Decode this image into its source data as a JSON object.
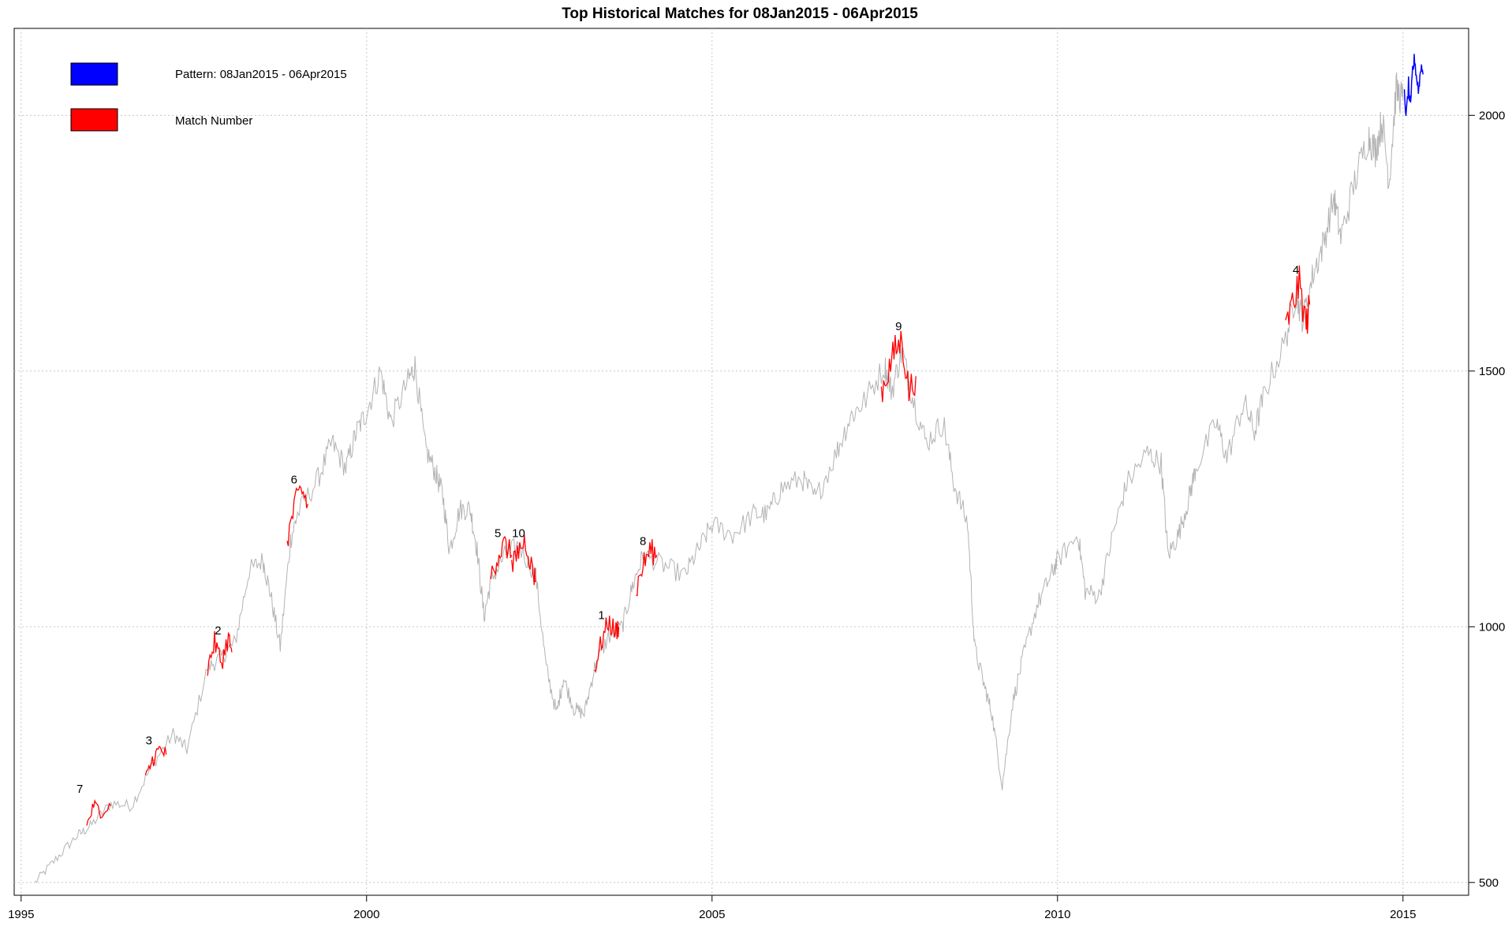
{
  "chart_data": {
    "type": "line",
    "title": "Top Historical Matches for  08Jan2015 - 06Apr2015",
    "xlabel": "",
    "ylabel": "",
    "xlim": [
      1994.9,
      2015.95
    ],
    "ylim": [
      475,
      2170
    ],
    "x_ticks": [
      1995,
      2000,
      2005,
      2010,
      2015
    ],
    "y_ticks": [
      500,
      1000,
      1500,
      2000
    ],
    "y_axis_side": "right",
    "grid": true,
    "legend": {
      "placement": "top-left",
      "items": [
        {
          "label": "Pattern:   08Jan2015 - 06Apr2015",
          "color": "#0000ff"
        },
        {
          "label": "Match Number",
          "color": "#ff0000"
        }
      ]
    },
    "series": [
      {
        "role": "history",
        "color": "#b3b3b3",
        "points": [
          [
            1995.2,
            500
          ],
          [
            1995.5,
            545
          ],
          [
            1995.8,
            590
          ],
          [
            1996.0,
            610
          ],
          [
            1996.3,
            655
          ],
          [
            1996.6,
            650
          ],
          [
            1996.9,
            730
          ],
          [
            1997.2,
            790
          ],
          [
            1997.4,
            760
          ],
          [
            1997.7,
            920
          ],
          [
            1997.9,
            940
          ],
          [
            1998.1,
            970
          ],
          [
            1998.3,
            1110
          ],
          [
            1998.5,
            1130
          ],
          [
            1998.6,
            1070
          ],
          [
            1998.75,
            960
          ],
          [
            1998.9,
            1170
          ],
          [
            1999.0,
            1220
          ],
          [
            1999.3,
            1290
          ],
          [
            1999.5,
            1360
          ],
          [
            1999.7,
            1310
          ],
          [
            1999.85,
            1380
          ],
          [
            2000.0,
            1420
          ],
          [
            2000.2,
            1500
          ],
          [
            2000.35,
            1400
          ],
          [
            2000.6,
            1480
          ],
          [
            2000.7,
            1510
          ],
          [
            2000.85,
            1350
          ],
          [
            2001.0,
            1300
          ],
          [
            2001.1,
            1260
          ],
          [
            2001.2,
            1150
          ],
          [
            2001.35,
            1230
          ],
          [
            2001.5,
            1230
          ],
          [
            2001.6,
            1150
          ],
          [
            2001.7,
            1020
          ],
          [
            2001.8,
            1090
          ],
          [
            2002.0,
            1140
          ],
          [
            2002.2,
            1160
          ],
          [
            2002.45,
            1100
          ],
          [
            2002.6,
            920
          ],
          [
            2002.75,
            830
          ],
          [
            2002.85,
            900
          ],
          [
            2003.0,
            840
          ],
          [
            2003.15,
            830
          ],
          [
            2003.3,
            920
          ],
          [
            2003.5,
            980
          ],
          [
            2003.7,
            1000
          ],
          [
            2003.85,
            1080
          ],
          [
            2004.0,
            1140
          ],
          [
            2004.3,
            1120
          ],
          [
            2004.6,
            1100
          ],
          [
            2004.8,
            1150
          ],
          [
            2005.0,
            1200
          ],
          [
            2005.3,
            1180
          ],
          [
            2005.6,
            1220
          ],
          [
            2005.8,
            1220
          ],
          [
            2006.0,
            1270
          ],
          [
            2006.3,
            1290
          ],
          [
            2006.5,
            1250
          ],
          [
            2006.8,
            1340
          ],
          [
            2007.0,
            1410
          ],
          [
            2007.2,
            1440
          ],
          [
            2007.5,
            1510
          ],
          [
            2007.6,
            1460
          ],
          [
            2007.75,
            1540
          ],
          [
            2007.9,
            1450
          ],
          [
            2008.1,
            1360
          ],
          [
            2008.35,
            1400
          ],
          [
            2008.5,
            1280
          ],
          [
            2008.7,
            1200
          ],
          [
            2008.8,
            960
          ],
          [
            2008.95,
            880
          ],
          [
            2009.05,
            830
          ],
          [
            2009.2,
            690
          ],
          [
            2009.35,
            850
          ],
          [
            2009.5,
            940
          ],
          [
            2009.7,
            1040
          ],
          [
            2009.9,
            1100
          ],
          [
            2010.0,
            1130
          ],
          [
            2010.3,
            1180
          ],
          [
            2010.4,
            1070
          ],
          [
            2010.6,
            1060
          ],
          [
            2010.8,
            1180
          ],
          [
            2011.0,
            1280
          ],
          [
            2011.3,
            1340
          ],
          [
            2011.5,
            1320
          ],
          [
            2011.6,
            1140
          ],
          [
            2011.75,
            1180
          ],
          [
            2011.9,
            1250
          ],
          [
            2012.0,
            1310
          ],
          [
            2012.3,
            1400
          ],
          [
            2012.45,
            1330
          ],
          [
            2012.7,
            1440
          ],
          [
            2012.85,
            1380
          ],
          [
            2013.0,
            1460
          ],
          [
            2013.3,
            1560
          ],
          [
            2013.45,
            1650
          ],
          [
            2013.55,
            1600
          ],
          [
            2013.7,
            1690
          ],
          [
            2013.85,
            1750
          ],
          [
            2014.0,
            1840
          ],
          [
            2014.1,
            1760
          ],
          [
            2014.3,
            1870
          ],
          [
            2014.5,
            1960
          ],
          [
            2014.6,
            1930
          ],
          [
            2014.7,
            1990
          ],
          [
            2014.8,
            1870
          ],
          [
            2014.9,
            2050
          ],
          [
            2015.0,
            2030
          ]
        ]
      },
      {
        "role": "pattern",
        "color": "#0000ff",
        "points": [
          [
            2015.02,
            2040
          ],
          [
            2015.05,
            2000
          ],
          [
            2015.08,
            2060
          ],
          [
            2015.11,
            2010
          ],
          [
            2015.14,
            2090
          ],
          [
            2015.17,
            2110
          ],
          [
            2015.2,
            2070
          ],
          [
            2015.23,
            2050
          ],
          [
            2015.26,
            2100
          ],
          [
            2015.29,
            2080
          ]
        ]
      }
    ],
    "matches": [
      {
        "label": "1",
        "color": "#ff0000",
        "label_point": [
          2003.4,
          1015
        ],
        "points": [
          [
            2003.3,
            920
          ],
          [
            2003.4,
            970
          ],
          [
            2003.5,
            1010
          ],
          [
            2003.6,
            990
          ],
          [
            2003.65,
            1000
          ]
        ]
      },
      {
        "label": "2",
        "color": "#ff0000",
        "label_point": [
          1997.85,
          985
        ],
        "points": [
          [
            1997.7,
            920
          ],
          [
            1997.8,
            970
          ],
          [
            1997.9,
            930
          ],
          [
            1998.0,
            980
          ],
          [
            1998.05,
            950
          ]
        ]
      },
      {
        "label": "3",
        "color": "#ff0000",
        "label_point": [
          1996.85,
          770
        ],
        "points": [
          [
            1996.8,
            700
          ],
          [
            1996.9,
            740
          ],
          [
            1997.0,
            760
          ],
          [
            1997.1,
            750
          ]
        ]
      },
      {
        "label": "4",
        "color": "#ff0000",
        "label_point": [
          2013.45,
          1690
        ],
        "points": [
          [
            2013.3,
            1580
          ],
          [
            2013.4,
            1630
          ],
          [
            2013.5,
            1670
          ],
          [
            2013.6,
            1590
          ],
          [
            2013.65,
            1630
          ]
        ]
      },
      {
        "label": "5",
        "color": "#ff0000",
        "label_point": [
          2001.9,
          1175
        ],
        "points": [
          [
            2001.8,
            1100
          ],
          [
            2001.9,
            1140
          ],
          [
            2002.0,
            1160
          ],
          [
            2002.1,
            1140
          ]
        ]
      },
      {
        "label": "6",
        "color": "#ff0000",
        "label_point": [
          1998.95,
          1280
        ],
        "points": [
          [
            1998.85,
            1170
          ],
          [
            1998.95,
            1230
          ],
          [
            1999.05,
            1270
          ],
          [
            1999.15,
            1240
          ]
        ]
      },
      {
        "label": "7",
        "color": "#ff0000",
        "label_point": [
          1995.85,
          675
        ],
        "points": [
          [
            1995.95,
            610
          ],
          [
            1996.05,
            650
          ],
          [
            1996.15,
            640
          ],
          [
            1996.3,
            650
          ]
        ]
      },
      {
        "label": "8",
        "color": "#ff0000",
        "label_point": [
          2004.0,
          1160
        ],
        "points": [
          [
            2003.9,
            1070
          ],
          [
            2004.0,
            1120
          ],
          [
            2004.1,
            1150
          ],
          [
            2004.2,
            1140
          ]
        ]
      },
      {
        "label": "9",
        "color": "#ff0000",
        "label_point": [
          2007.7,
          1580
        ],
        "points": [
          [
            2007.45,
            1460
          ],
          [
            2007.55,
            1500
          ],
          [
            2007.65,
            1540
          ],
          [
            2007.75,
            1560
          ],
          [
            2007.85,
            1460
          ],
          [
            2007.95,
            1490
          ]
        ]
      },
      {
        "label": "10",
        "color": "#ff0000",
        "label_point": [
          2002.2,
          1175
        ],
        "points": [
          [
            2002.1,
            1110
          ],
          [
            2002.2,
            1150
          ],
          [
            2002.3,
            1170
          ],
          [
            2002.4,
            1110
          ],
          [
            2002.45,
            1090
          ]
        ]
      }
    ]
  }
}
